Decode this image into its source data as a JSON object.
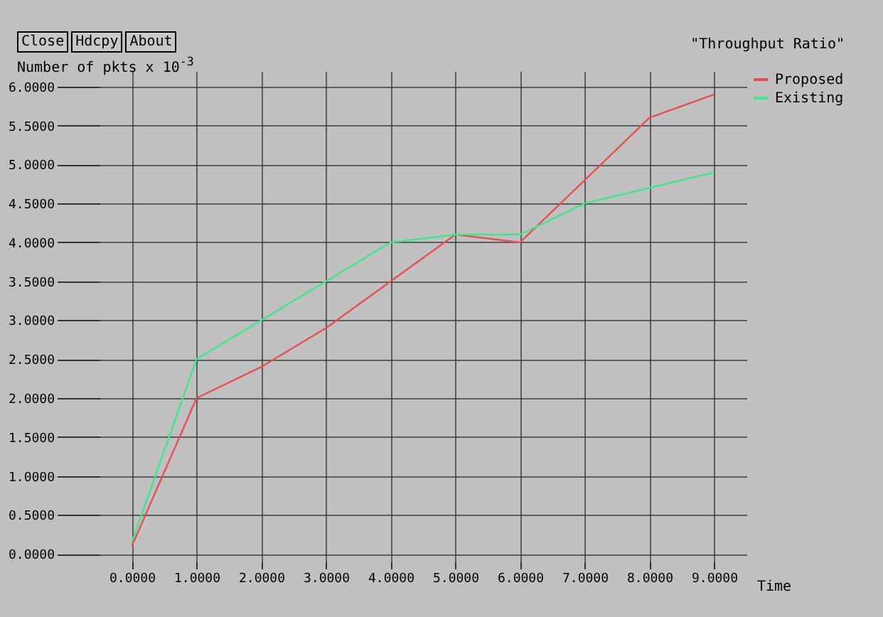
{
  "chart_data": {
    "type": "line",
    "title": "\"Throughput Ratio\"",
    "xlabel": "Time",
    "ylabel": "Number of pkts x 10$^{-3}$",
    "annotations": [
      "Close",
      "Hdcpy",
      "About"
    ],
    "x": [
      0,
      1,
      2,
      3,
      4,
      5,
      6,
      7,
      8,
      9
    ],
    "series": [
      {
        "name": "Proposed",
        "color": "#e8504f",
        "values": [
          0.1,
          2.0,
          2.4,
          2.9,
          3.5,
          4.1,
          4.0,
          4.8,
          5.6,
          5.9
        ]
      },
      {
        "name": "Existing",
        "color": "#3ee887",
        "values": [
          0.15,
          2.5,
          3.0,
          3.5,
          4.0,
          4.1,
          4.1,
          4.5,
          4.7,
          4.9
        ]
      }
    ],
    "xlim": [
      -0.5,
      9.5
    ],
    "ylim": [
      -0.1,
      6.2
    ],
    "xticks": [
      {
        "value": 0,
        "label": "0.0000"
      },
      {
        "value": 1,
        "label": "1.0000"
      },
      {
        "value": 2,
        "label": "2.0000"
      },
      {
        "value": 3,
        "label": "3.0000"
      },
      {
        "value": 4,
        "label": "4.0000"
      },
      {
        "value": 5,
        "label": "5.0000"
      },
      {
        "value": 6,
        "label": "6.0000"
      },
      {
        "value": 7,
        "label": "7.0000"
      },
      {
        "value": 8,
        "label": "8.0000"
      },
      {
        "value": 9,
        "label": "9.0000"
      }
    ],
    "yticks": [
      {
        "value": 0,
        "label": "0.0000"
      },
      {
        "value": 0.5,
        "label": "0.5000"
      },
      {
        "value": 1,
        "label": "1.0000"
      },
      {
        "value": 1.5,
        "label": "1.5000"
      },
      {
        "value": 2,
        "label": "2.0000"
      },
      {
        "value": 2.5,
        "label": "2.5000"
      },
      {
        "value": 3,
        "label": "3.0000"
      },
      {
        "value": 3.5,
        "label": "3.5000"
      },
      {
        "value": 4,
        "label": "4.0000"
      },
      {
        "value": 4.5,
        "label": "4.5000"
      },
      {
        "value": 5,
        "label": "5.0000"
      },
      {
        "value": 5.5,
        "label": "5.5000"
      },
      {
        "value": 6,
        "label": "6.0000"
      }
    ],
    "grid": true,
    "legend": "top right",
    "marker": "none",
    "line_style": "solid"
  }
}
